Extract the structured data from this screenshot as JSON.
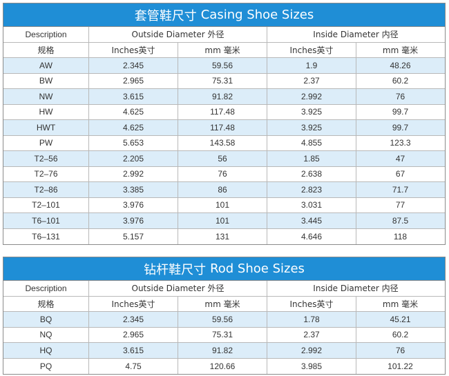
{
  "casing": {
    "title_cn": "套管鞋尺寸",
    "title_en": "Casing Shoe Sizes",
    "header1": {
      "desc": "Description",
      "outside": "Outside Diameter 外径",
      "inside": "Inside Diameter 内径"
    },
    "header2": {
      "desc": "规格",
      "od_in": "Inches英寸",
      "od_mm": "mm 毫米",
      "id_in": "Inches英寸",
      "id_mm": "mm 毫米"
    },
    "rows": [
      {
        "name": "AW",
        "od_in": "2.345",
        "od_mm": "59.56",
        "id_in": "1.9",
        "id_mm": "48.26"
      },
      {
        "name": "BW",
        "od_in": "2.965",
        "od_mm": "75.31",
        "id_in": "2.37",
        "id_mm": "60.2"
      },
      {
        "name": "NW",
        "od_in": "3.615",
        "od_mm": "91.82",
        "id_in": "2.992",
        "id_mm": "76"
      },
      {
        "name": "HW",
        "od_in": "4.625",
        "od_mm": "117.48",
        "id_in": "3.925",
        "id_mm": "99.7"
      },
      {
        "name": "HWT",
        "od_in": "4.625",
        "od_mm": "117.48",
        "id_in": "3.925",
        "id_mm": "99.7"
      },
      {
        "name": "PW",
        "od_in": "5.653",
        "od_mm": "143.58",
        "id_in": "4.855",
        "id_mm": "123.3"
      },
      {
        "name": "T2–56",
        "od_in": "2.205",
        "od_mm": "56",
        "id_in": "1.85",
        "id_mm": "47"
      },
      {
        "name": "T2–76",
        "od_in": "2.992",
        "od_mm": "76",
        "id_in": "2.638",
        "id_mm": "67"
      },
      {
        "name": "T2–86",
        "od_in": "3.385",
        "od_mm": "86",
        "id_in": "2.823",
        "id_mm": "71.7"
      },
      {
        "name": "T2–101",
        "od_in": "3.976",
        "od_mm": "101",
        "id_in": "3.031",
        "id_mm": "77"
      },
      {
        "name": "T6–101",
        "od_in": "3.976",
        "od_mm": "101",
        "id_in": "3.445",
        "id_mm": "87.5"
      },
      {
        "name": "T6–131",
        "od_in": "5.157",
        "od_mm": "131",
        "id_in": "4.646",
        "id_mm": "118"
      }
    ]
  },
  "rod": {
    "title_cn": "钻杆鞋尺寸",
    "title_en": "Rod Shoe Sizes",
    "header1": {
      "desc": "Description",
      "outside": "Outside Diameter 外径",
      "inside": "Inside Diameter 内径"
    },
    "header2": {
      "desc": "规格",
      "od_in": "Inches英寸",
      "od_mm": "mm 毫米",
      "id_in": "Inches英寸",
      "id_mm": "mm 毫米"
    },
    "rows": [
      {
        "name": "BQ",
        "od_in": "2.345",
        "od_mm": "59.56",
        "id_in": "1.78",
        "id_mm": "45.21"
      },
      {
        "name": "NQ",
        "od_in": "2.965",
        "od_mm": "75.31",
        "id_in": "2.37",
        "id_mm": "60.2"
      },
      {
        "name": "HQ",
        "od_in": "3.615",
        "od_mm": "91.82",
        "id_in": "2.992",
        "id_mm": "76"
      },
      {
        "name": "PQ",
        "od_in": "4.75",
        "od_mm": "120.66",
        "id_in": "3.985",
        "id_mm": "101.22"
      }
    ]
  },
  "colors": {
    "title_bg": "#1f8ed6",
    "row_shade": "#dcedf9",
    "border": "#b8b8b8"
  }
}
